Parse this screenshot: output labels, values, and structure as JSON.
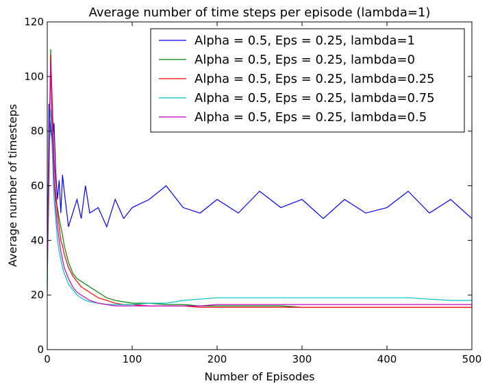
{
  "chart_data": {
    "type": "line",
    "title": "Average number of time steps per episode (lambda=1)",
    "xlabel": "Number of Episodes",
    "ylabel": "Average number of timesteps",
    "xlim": [
      0,
      500
    ],
    "ylim": [
      0,
      120
    ],
    "xticks": [
      0,
      100,
      200,
      300,
      400,
      500
    ],
    "yticks": [
      0,
      20,
      40,
      60,
      80,
      100,
      120
    ],
    "grid": false,
    "legend_position": "top-right",
    "x": [
      0,
      2,
      4,
      6,
      8,
      10,
      12,
      14,
      16,
      18,
      20,
      25,
      30,
      35,
      40,
      45,
      50,
      60,
      70,
      80,
      90,
      100,
      120,
      140,
      160,
      180,
      200,
      225,
      250,
      275,
      300,
      325,
      350,
      375,
      400,
      425,
      450,
      475,
      500
    ],
    "series": [
      {
        "name": "Alpha = 0.5, Eps = 0.25, lambda=1",
        "color": "#0000ff",
        "values": [
          22,
          90,
          80,
          75,
          83,
          65,
          55,
          62,
          50,
          64,
          58,
          45,
          50,
          55,
          48,
          60,
          50,
          52,
          45,
          55,
          48,
          52,
          55,
          60,
          52,
          50,
          55,
          50,
          58,
          52,
          55,
          48,
          55,
          50,
          52,
          58,
          50,
          55,
          48
        ]
      },
      {
        "name": "Alpha = 0.5, Eps = 0.25, lambda=0",
        "color": "#008000",
        "values": [
          25,
          60,
          110,
          75,
          60,
          55,
          52,
          48,
          45,
          42,
          38,
          32,
          28,
          26,
          25,
          24,
          23,
          21,
          19,
          18,
          17.5,
          17,
          17,
          16.5,
          16.5,
          16,
          16,
          16,
          16,
          16,
          15.5,
          15.5,
          15.5,
          15.5,
          15.5,
          15.5,
          15.5,
          15.5,
          15.5
        ]
      },
      {
        "name": "Alpha = 0.5, Eps = 0.25, lambda=0.25",
        "color": "#ff0000",
        "values": [
          30,
          70,
          108,
          90,
          70,
          58,
          50,
          45,
          40,
          38,
          35,
          30,
          27,
          25,
          23,
          22,
          21,
          19,
          18,
          17,
          16.5,
          16.5,
          16,
          16,
          16,
          15.5,
          15.5,
          15.5,
          15.5,
          15.5,
          15.5,
          15.5,
          15.5,
          15.5,
          15.5,
          15.5,
          15.5,
          15.5,
          15.5
        ]
      },
      {
        "name": "Alpha = 0.5, Eps = 0.25, lambda=0.75",
        "color": "#00bfbf",
        "values": [
          20,
          80,
          88,
          72,
          55,
          48,
          40,
          36,
          33,
          30,
          28,
          24,
          22,
          20,
          19,
          18,
          17.5,
          17,
          16.5,
          16.5,
          16.5,
          16.5,
          17,
          17,
          18,
          18.5,
          19,
          19,
          19,
          19,
          19,
          19,
          19,
          19,
          19,
          19,
          18.5,
          18,
          18
        ]
      },
      {
        "name": "Alpha = 0.5, Eps = 0.25, lambda=0.5",
        "color": "#bf00bf",
        "values": [
          28,
          75,
          105,
          80,
          62,
          52,
          45,
          40,
          36,
          33,
          30,
          26,
          23,
          21,
          20,
          19,
          18,
          17,
          16.5,
          16,
          16,
          16,
          16,
          16,
          16,
          16,
          16.5,
          16.5,
          16.5,
          16.5,
          16.5,
          16.5,
          16.5,
          16.5,
          16.5,
          16.5,
          16.5,
          16.5,
          16.5
        ]
      }
    ]
  }
}
